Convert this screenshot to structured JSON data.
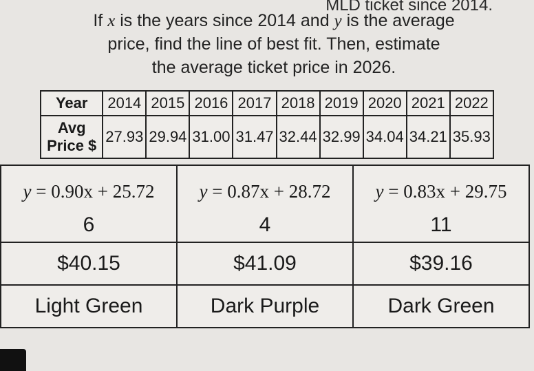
{
  "fragment_top": "MLD ticket since 2014.",
  "prompt": {
    "line1_pre": "If ",
    "var_x": "x",
    "line1_mid": " is the years since 2014 and ",
    "var_y": "y",
    "line1_post": " is the average",
    "line2": "price, find the line of best fit.  Then, estimate",
    "line3": "the average ticket price in 2026."
  },
  "data_table": {
    "row_headers": [
      "Year",
      "Avg Price $"
    ],
    "years": [
      "2014",
      "2015",
      "2016",
      "2017",
      "2018",
      "2019",
      "2020",
      "2021",
      "2022"
    ],
    "prices": [
      "27.93",
      "29.94",
      "31.00",
      "31.47",
      "32.44",
      "32.99",
      "34.04",
      "34.21",
      "35.93"
    ]
  },
  "answer_table": {
    "columns": [
      {
        "equation_lhs": "y",
        "equation_rhs": "= 0.90x + 25.72",
        "number": "6",
        "price": "$40.15",
        "color": "Light Green"
      },
      {
        "equation_lhs": "y",
        "equation_rhs": "= 0.87x + 28.72",
        "number": "4",
        "price": "$41.09",
        "color": "Dark Purple"
      },
      {
        "equation_lhs": "y",
        "equation_rhs": "= 0.83x + 29.75",
        "number": "11",
        "price": "$39.16",
        "color": "Dark Green"
      }
    ]
  },
  "style": {
    "page_bg": "#e8e6e3",
    "border_color": "#222222",
    "text_color": "#1a1a1a"
  }
}
